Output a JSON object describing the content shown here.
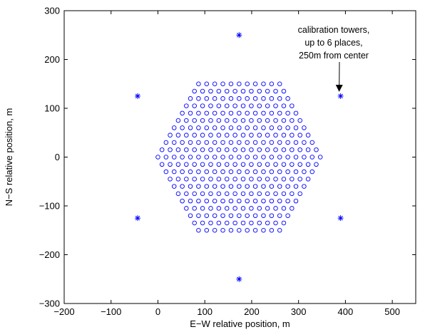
{
  "chart_data": {
    "type": "scatter",
    "xlabel": "E−W relative position, m",
    "ylabel": "N−S relative position, m",
    "xlim": [
      -200,
      550
    ],
    "ylim": [
      -300,
      300
    ],
    "xticks": [
      -200,
      -100,
      0,
      100,
      200,
      300,
      400,
      500
    ],
    "yticks": [
      -300,
      -200,
      -100,
      0,
      100,
      200,
      300
    ],
    "grid": false,
    "colors": {
      "marker": "#0000ff",
      "axes": "#000000"
    },
    "series": [
      {
        "marker": "circle",
        "lattice": {
          "center": [
            173.2,
            0
          ],
          "spacing_x": 17.32,
          "spacing_y": 15,
          "radius_rings": 10,
          "note": "hexagonal close-packed array of markers"
        }
      },
      {
        "marker": "asterisk",
        "points": [
          [
            173.2,
            250
          ],
          [
            389.7,
            125
          ],
          [
            389.7,
            -125
          ],
          [
            173.2,
            -250
          ],
          [
            -43.3,
            -125
          ],
          [
            -43.3,
            125
          ]
        ]
      }
    ],
    "annotation": {
      "lines": [
        "calibration towers,",
        "up to 6 places,",
        "250m from center"
      ],
      "arrow_target": [
        389.7,
        125
      ]
    }
  }
}
